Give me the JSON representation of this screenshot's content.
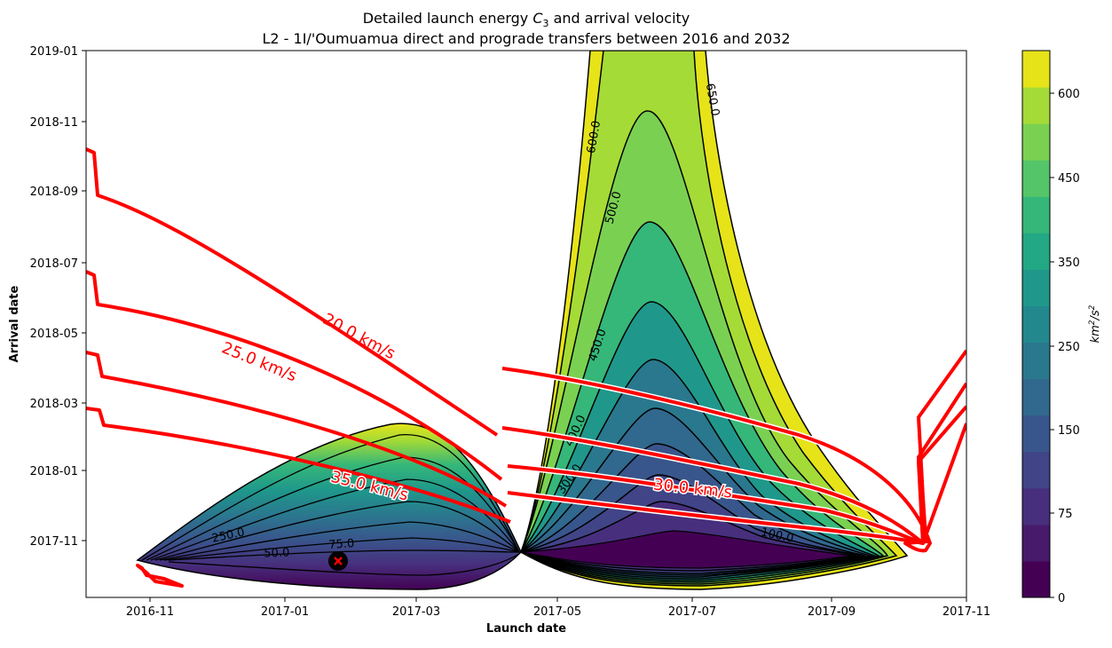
{
  "chart_data": {
    "type": "contour",
    "title_line1_prefix": "Detailed launch energy ",
    "title_line1_var": "C",
    "title_line1_sub": "3",
    "title_line1_suffix": " and arrival velocity",
    "title_line2": "L2 - 1I/'Oumuamua direct and prograde transfers between 2016 and 2032",
    "xlabel": "Launch date",
    "ylabel": "Arrival date",
    "x_ticks": [
      "2016-11",
      "2017-01",
      "2017-03",
      "2017-05",
      "2017-07",
      "2017-09",
      "2017-11"
    ],
    "y_ticks": [
      "2017-11",
      "2018-01",
      "2018-03",
      "2018-05",
      "2018-07",
      "2018-09",
      "2018-11",
      "2019-01"
    ],
    "x_range": [
      "2016-10-01",
      "2017-11-01"
    ],
    "y_range": [
      "2017-09-10",
      "2019-01-01"
    ],
    "colorbar": {
      "label_base": "km",
      "label_exp1": "2",
      "label_mid": "/s",
      "label_exp2": "2",
      "ticks": [
        "0",
        "75",
        "150",
        "250",
        "350",
        "450",
        "600"
      ],
      "levels": [
        0,
        50,
        75,
        100,
        150,
        200,
        250,
        300,
        350,
        400,
        450,
        500,
        550,
        600,
        650
      ],
      "colors": [
        "#440154",
        "#481a6c",
        "#472f7d",
        "#414487",
        "#39568c",
        "#31688e",
        "#2a788e",
        "#23888e",
        "#1f988b",
        "#22a884",
        "#35b779",
        "#54c568",
        "#7ad151",
        "#a5db36",
        "#e6e319"
      ]
    },
    "c3_contour_labels": [
      "50.0",
      "75.0",
      "100.0",
      "250.0",
      "300.0",
      "400.0",
      "450.0",
      "500.0",
      "600.0",
      "650.0"
    ],
    "velocity_contours": [
      {
        "label": "20.0 km/s",
        "value": 20.0
      },
      {
        "label": "25.0 km/s",
        "value": 25.0
      },
      {
        "label": "30.0 km/s",
        "value": 30.0
      },
      {
        "label": "35.0 km/s",
        "value": 35.0
      }
    ],
    "optimum_marker": {
      "launch": "2017-01-23",
      "arrival": "2017-10-12",
      "symbol": "x"
    },
    "grid": false,
    "legend": "none"
  }
}
